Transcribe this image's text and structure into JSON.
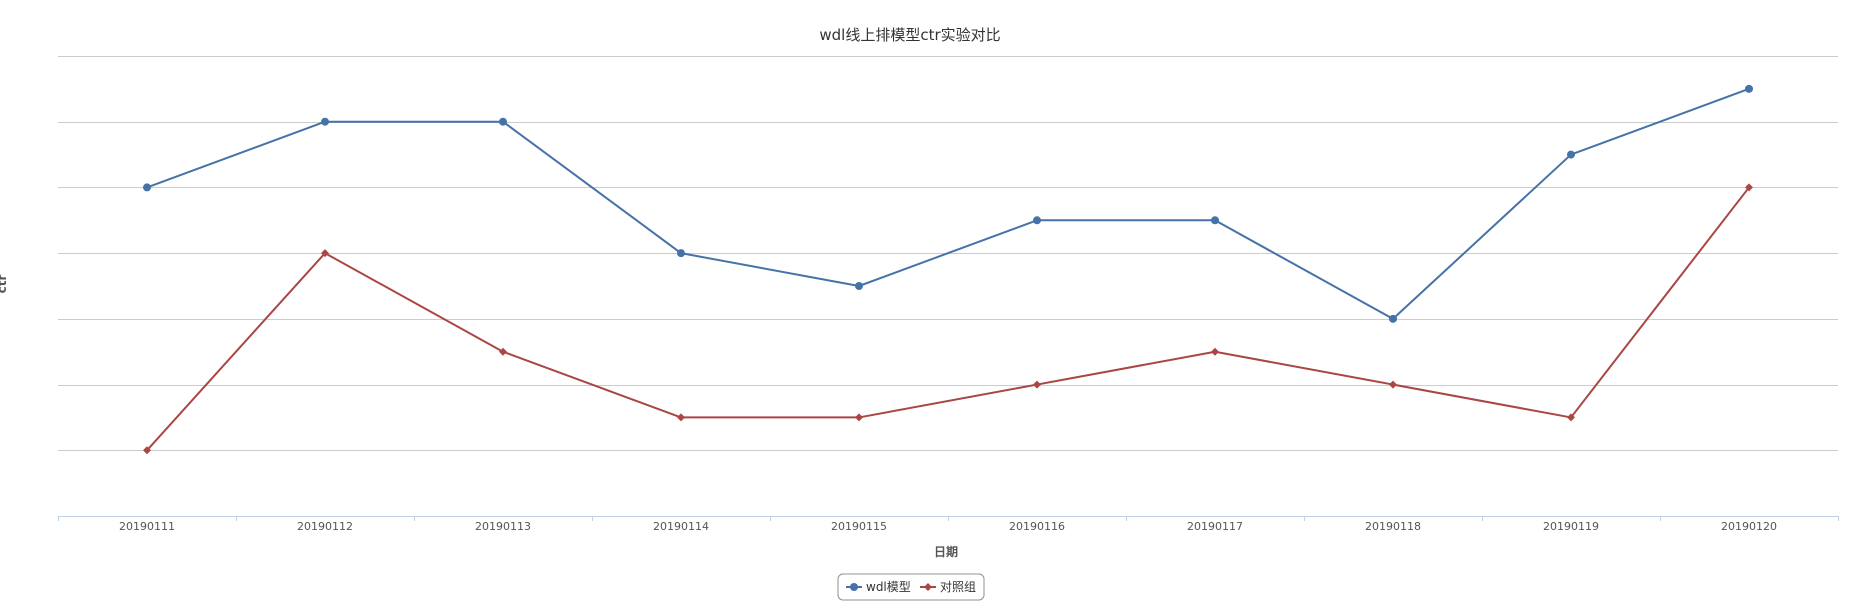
{
  "chart_data": {
    "type": "line",
    "title": "wdl线上排模型ctr实验对比",
    "xlabel": "日期",
    "ylabel": "ctr",
    "categories": [
      "20190111",
      "20190112",
      "20190113",
      "20190114",
      "20190115",
      "20190116",
      "20190117",
      "20190118",
      "20190119",
      "20190120"
    ],
    "ylim": [
      0,
      7
    ],
    "grid": true,
    "legend_position": "bottom-center",
    "series": [
      {
        "name": "wdl模型",
        "color": "#4572A7",
        "marker": "circle",
        "values": [
          5.0,
          6.0,
          6.0,
          4.0,
          3.5,
          4.5,
          4.5,
          3.0,
          5.5,
          6.5
        ]
      },
      {
        "name": "对照组",
        "color": "#AA4643",
        "marker": "diamond",
        "values": [
          1.0,
          4.0,
          2.5,
          1.5,
          1.5,
          2.0,
          2.5,
          2.0,
          1.5,
          5.0
        ]
      }
    ]
  }
}
